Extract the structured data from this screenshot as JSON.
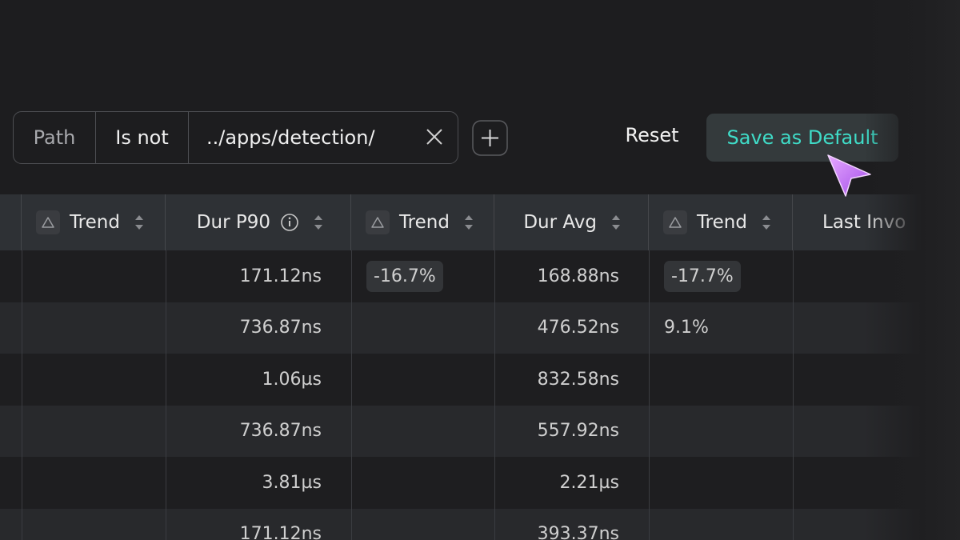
{
  "filter": {
    "field": "Path",
    "operator": "Is not",
    "value": "../apps/detection/"
  },
  "actions": {
    "reset": "Reset",
    "save": "Save as Default"
  },
  "table": {
    "headers": [
      "Trend",
      "Dur P90",
      "Trend",
      "Dur Avg",
      "Trend",
      "Last Invo"
    ],
    "rows": [
      [
        "171.12ns",
        "-16.7%",
        "168.88ns",
        "-17.7%"
      ],
      [
        "736.87ns",
        null,
        "476.52ns",
        "9.1%"
      ],
      [
        "1.06µs",
        null,
        "832.58ns",
        null
      ],
      [
        "736.87ns",
        null,
        "557.92ns",
        null
      ],
      [
        "3.81µs",
        null,
        "2.21µs",
        null
      ],
      [
        "171.12ns",
        null,
        "393.37ns",
        null
      ]
    ]
  }
}
